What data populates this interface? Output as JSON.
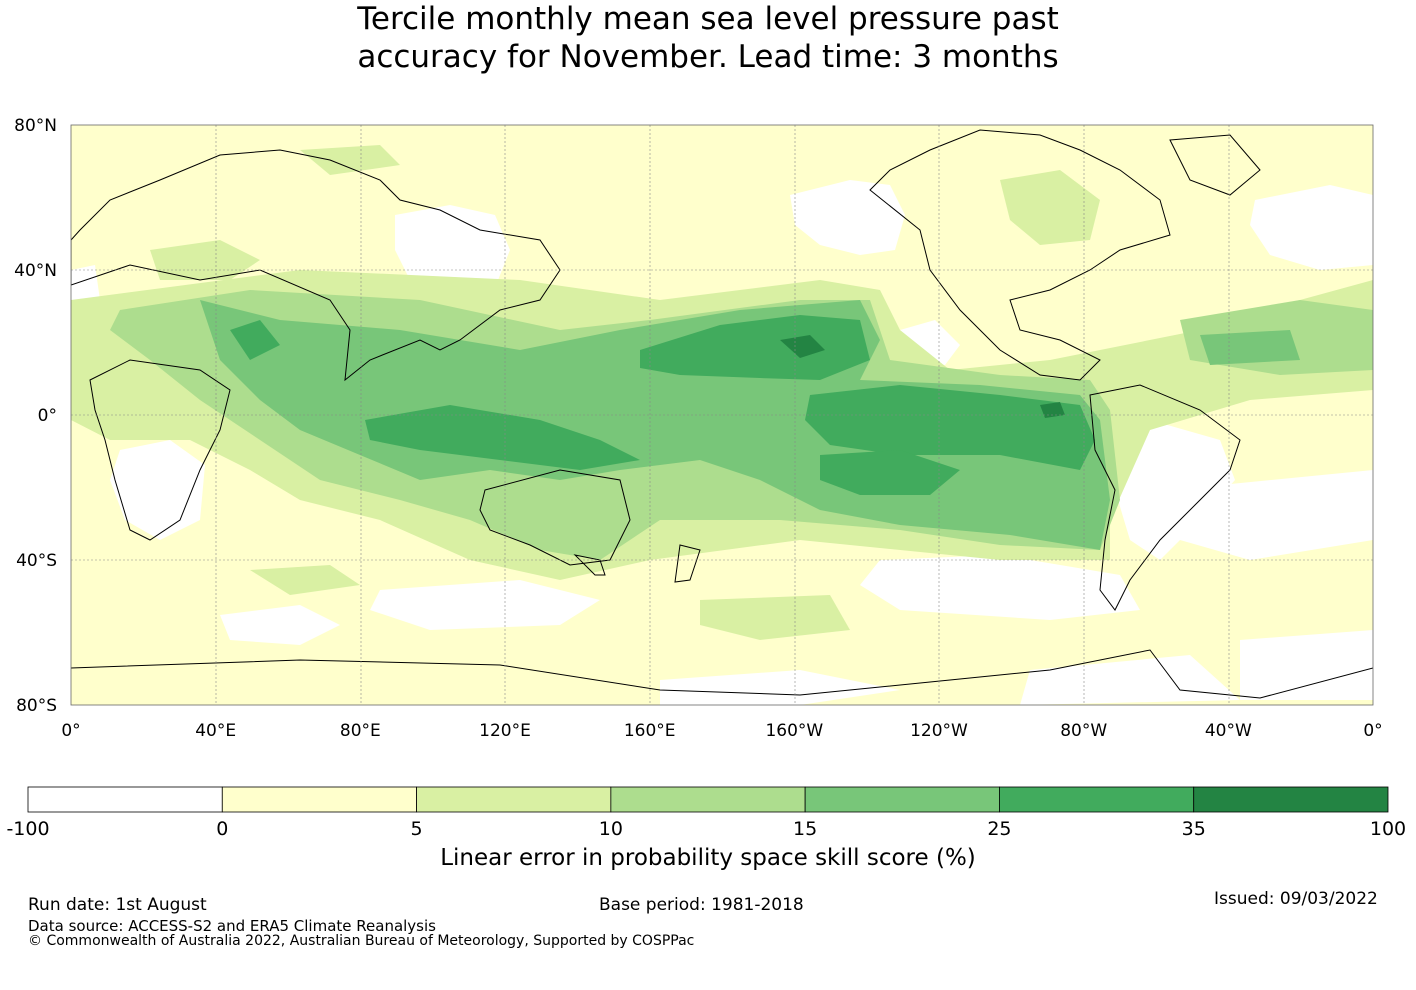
{
  "title": {
    "line1": "Tercile monthly mean sea level pressure past",
    "line2": "accuracy for November. Lead time: 3 months"
  },
  "map": {
    "lat_ticks": [
      "80°N",
      "40°N",
      "0°",
      "40°S",
      "80°S"
    ],
    "lon_ticks": [
      "0°",
      "40°E",
      "80°E",
      "120°E",
      "160°E",
      "160°W",
      "120°W",
      "80°W",
      "40°W",
      "0°"
    ],
    "gridlines": true,
    "projection": "equirectangular",
    "lon_range": [
      0,
      360
    ],
    "lat_range": [
      -80,
      80
    ]
  },
  "colorbar": {
    "tick_labels": [
      "-100",
      "0",
      "5",
      "10",
      "15",
      "25",
      "35",
      "100"
    ],
    "colors": [
      "#ffffff",
      "#ffffcc",
      "#d9f0a3",
      "#addd8e",
      "#78c679",
      "#41ab5d",
      "#238443"
    ],
    "label": "Linear error in probability space skill score (%)"
  },
  "footer": {
    "run_date": "Run date: 1st August",
    "base_period": "Base period: 1981-2018",
    "issued": "Issued: 09/03/2022",
    "data_source": "Data source: ACCESS-S2 and ERA5 Climate Reanalysis",
    "copyright": "© Commonwealth of Australia 2022, Australian Bureau of Meteorology, Supported by COSPPac"
  }
}
